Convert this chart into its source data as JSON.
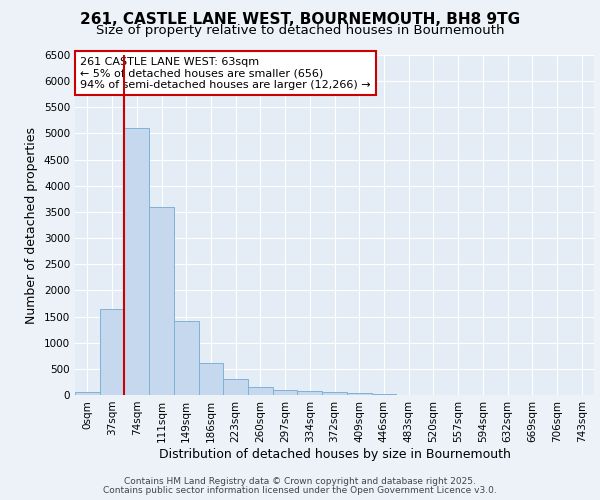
{
  "title_line1": "261, CASTLE LANE WEST, BOURNEMOUTH, BH8 9TG",
  "title_line2": "Size of property relative to detached houses in Bournemouth",
  "xlabel": "Distribution of detached houses by size in Bournemouth",
  "ylabel": "Number of detached properties",
  "footer_line1": "Contains HM Land Registry data © Crown copyright and database right 2025.",
  "footer_line2": "Contains public sector information licensed under the Open Government Licence v3.0.",
  "annotation_line1": "261 CASTLE LANE WEST: 63sqm",
  "annotation_line2": "← 5% of detached houses are smaller (656)",
  "annotation_line3": "94% of semi-detached houses are larger (12,266) →",
  "bar_labels": [
    "0sqm",
    "37sqm",
    "74sqm",
    "111sqm",
    "149sqm",
    "186sqm",
    "223sqm",
    "260sqm",
    "297sqm",
    "334sqm",
    "372sqm",
    "409sqm",
    "446sqm",
    "483sqm",
    "520sqm",
    "557sqm",
    "594sqm",
    "632sqm",
    "669sqm",
    "706sqm",
    "743sqm"
  ],
  "bar_values": [
    60,
    1650,
    5100,
    3600,
    1420,
    620,
    310,
    155,
    100,
    75,
    50,
    30,
    10,
    5,
    2,
    1,
    1,
    0,
    0,
    0,
    0
  ],
  "bar_color": "#c5d8ee",
  "bar_edge_color": "#7fb2d8",
  "red_line_x": 1.5,
  "ylim": [
    0,
    6500
  ],
  "yticks": [
    0,
    500,
    1000,
    1500,
    2000,
    2500,
    3000,
    3500,
    4000,
    4500,
    5000,
    5500,
    6000,
    6500
  ],
  "background_color": "#edf2f8",
  "plot_bg_color": "#e4ecf5",
  "grid_color": "#ffffff",
  "annotation_box_edge_color": "#cc0000",
  "title_fontsize": 11,
  "subtitle_fontsize": 9.5,
  "axis_label_fontsize": 9,
  "tick_fontsize": 7.5,
  "annotation_fontsize": 8,
  "footer_fontsize": 6.5
}
